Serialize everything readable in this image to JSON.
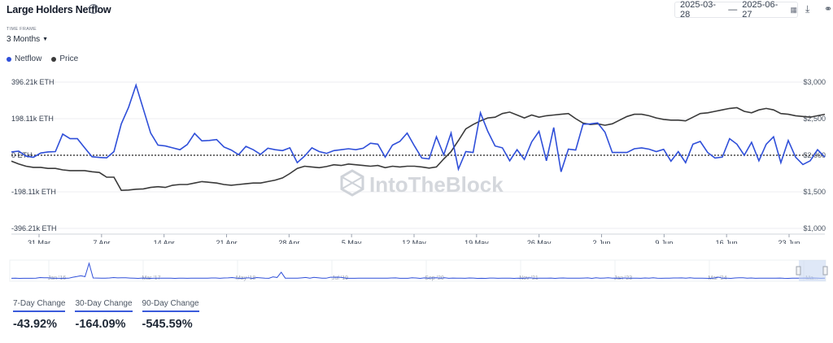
{
  "header": {
    "title": "Large Holders Netflow",
    "date_start": "2025-03-28",
    "date_sep": "—",
    "date_end": "2025-06-27",
    "icons": [
      "info-icon",
      "calendar-icon",
      "download-icon",
      "link-icon"
    ]
  },
  "timeframe": {
    "label": "TIME FRAME",
    "value": "3 Months"
  },
  "legend": [
    {
      "name": "Netflow",
      "color": "#2f4fd9"
    },
    {
      "name": "Price",
      "color": "#3a3a3a"
    }
  ],
  "watermark": "IntoTheBlock",
  "chart_data": {
    "type": "line",
    "x_tick_labels": [
      "31 Mar",
      "7 Apr",
      "14 Apr",
      "21 Apr",
      "28 Apr",
      "5 May",
      "12 May",
      "19 May",
      "26 May",
      "2 Jun",
      "9 Jun",
      "16 Jun",
      "23 Jun"
    ],
    "y_left_ticks": [
      "396.21k ETH",
      "198.11k ETH",
      "0 ETH",
      "-198.11k ETH",
      "-396.21k ETH"
    ],
    "y_right_ticks": [
      "$3,000",
      "$2,500",
      "$2,000",
      "$1,500",
      "$1,000"
    ],
    "ylim_left": [
      -396210,
      396210
    ],
    "ylim_right": [
      1000,
      3000
    ],
    "x_start": "2025-03-28",
    "x_end": "2025-06-27",
    "series": [
      {
        "name": "Netflow",
        "axis": "left",
        "color": "#2f4fd9",
        "values": [
          18,
          22,
          -5,
          -11,
          12,
          18,
          20,
          115,
          90,
          90,
          40,
          -8,
          -12,
          -14,
          20,
          170,
          260,
          380,
          250,
          120,
          55,
          50,
          40,
          30,
          58,
          118,
          78,
          80,
          85,
          45,
          28,
          3,
          48,
          30,
          5,
          38,
          30,
          25,
          40,
          -40,
          -5,
          40,
          20,
          10,
          25,
          30,
          35,
          30,
          38,
          65,
          60,
          -10,
          55,
          75,
          120,
          50,
          -15,
          -20,
          100,
          2,
          120,
          -75,
          20,
          15,
          230,
          130,
          50,
          40,
          -30,
          30,
          -23,
          72,
          130,
          -30,
          150,
          -90,
          33,
          28,
          168,
          170,
          175,
          125,
          15,
          15,
          15,
          35,
          40,
          33,
          20,
          32,
          -32,
          20,
          -40,
          60,
          75,
          15,
          -15,
          -10,
          90,
          60,
          0,
          70,
          -30,
          60,
          100,
          -40,
          80,
          -10,
          -50,
          -30,
          30,
          -10,
          60,
          45,
          5,
          -13,
          0,
          42,
          45,
          -15,
          -25,
          -35,
          40,
          5,
          35,
          -15,
          50,
          75,
          -15,
          -20,
          30,
          20,
          45,
          0,
          45,
          60,
          20,
          40,
          -30,
          -35,
          45,
          70,
          5,
          90,
          -30,
          -50,
          90,
          40,
          -50,
          5,
          55,
          20,
          30,
          -30,
          -10,
          -60,
          -20,
          100,
          40,
          -10,
          -25,
          -30,
          65,
          60,
          75,
          20,
          80,
          40,
          -25,
          30,
          10,
          -5,
          60,
          175,
          -25,
          -40,
          0,
          60,
          100,
          80,
          -20,
          55,
          -10,
          20,
          -30,
          40,
          25,
          -40,
          50,
          -10,
          0,
          25,
          -20,
          30,
          45,
          -30,
          -60,
          -45,
          -10,
          35,
          30,
          20,
          -20,
          40,
          50,
          10,
          60,
          40,
          -40,
          -20,
          20,
          60,
          35,
          40,
          80,
          20,
          45,
          60,
          30,
          10,
          15,
          40,
          35,
          0,
          35,
          80,
          45,
          25,
          20,
          -25,
          5,
          60,
          30,
          40,
          55,
          20,
          10,
          -35,
          40,
          45,
          30,
          20,
          -10,
          220,
          120,
          -10,
          5,
          60,
          -50,
          -10,
          55,
          75,
          65,
          -15,
          -20,
          25,
          -60,
          5,
          30,
          50,
          20,
          60,
          10,
          120,
          -10,
          -20,
          -15,
          60,
          80,
          -45,
          -30,
          40,
          25,
          -10,
          65,
          45,
          10,
          -40,
          30,
          20,
          60,
          -15,
          70,
          25,
          20,
          -30,
          10,
          55,
          40,
          25,
          -20,
          30,
          20,
          20,
          35
        ]
      },
      {
        "name": "Price",
        "axis": "right",
        "color": "#3a3a3a",
        "values": [
          1920,
          1880,
          1850,
          1835,
          1835,
          1820,
          1820,
          1800,
          1790,
          1790,
          1790,
          1775,
          1765,
          1700,
          1700,
          1520,
          1525,
          1535,
          1540,
          1560,
          1570,
          1560,
          1590,
          1600,
          1600,
          1620,
          1640,
          1630,
          1620,
          1600,
          1590,
          1600,
          1610,
          1620,
          1620,
          1640,
          1660,
          1690,
          1750,
          1820,
          1850,
          1840,
          1830,
          1845,
          1870,
          1860,
          1880,
          1870,
          1860,
          1850,
          1860,
          1830,
          1850,
          1840,
          1850,
          1850,
          1840,
          1825,
          1840,
          1950,
          2050,
          2200,
          2360,
          2420,
          2470,
          2510,
          2520,
          2570,
          2590,
          2550,
          2510,
          2550,
          2520,
          2540,
          2550,
          2560,
          2570,
          2500,
          2440,
          2420,
          2430,
          2410,
          2430,
          2480,
          2530,
          2560,
          2560,
          2540,
          2510,
          2490,
          2480,
          2480,
          2470,
          2520,
          2570,
          2580,
          2600,
          2620,
          2640,
          2650,
          2600,
          2580,
          2620,
          2640,
          2620,
          2570,
          2560,
          2540,
          2530,
          2520,
          2540,
          2560,
          2580,
          2640,
          2660,
          2700,
          2680,
          2720,
          2760,
          2740,
          2700,
          2640,
          2580,
          2560,
          2540,
          2560,
          2580,
          2580,
          2560,
          2540,
          2520,
          2540,
          2580,
          2600,
          2620,
          2640,
          2590,
          2560,
          2540,
          2520,
          2560,
          2540,
          2520,
          2500,
          2480,
          2460,
          2480,
          2500,
          2520,
          2560,
          2580,
          2620,
          2680,
          2720,
          2790,
          2820,
          2780,
          2720,
          2660,
          2600,
          2560,
          2540,
          2540,
          2530,
          2520,
          2500,
          2510,
          2530,
          2520,
          2560,
          2560,
          2520,
          2490,
          2480,
          2470,
          2460,
          2480,
          2500,
          2520,
          2500,
          2460,
          2440,
          2430,
          2420,
          2410,
          2400,
          2380,
          2360,
          2340,
          2300,
          2270,
          2240,
          2230,
          2260,
          2280,
          2300,
          2320,
          2340,
          2360,
          2380,
          2400,
          2410,
          2400,
          2390,
          2420,
          2430,
          2440,
          2420,
          2400
        ]
      }
    ],
    "navigator_x_labels": [
      "Jan '16",
      "Mar '17",
      "May '18",
      "Jul '19",
      "Sep '20",
      "Nov '21",
      "Jan '23",
      "Mar '24",
      "Ma..."
    ],
    "grid": true
  },
  "stats": [
    {
      "label": "7-Day Change",
      "value": "-43.92%"
    },
    {
      "label": "30-Day Change",
      "value": "-164.09%"
    },
    {
      "label": "90-Day Change",
      "value": "-545.59%"
    }
  ]
}
